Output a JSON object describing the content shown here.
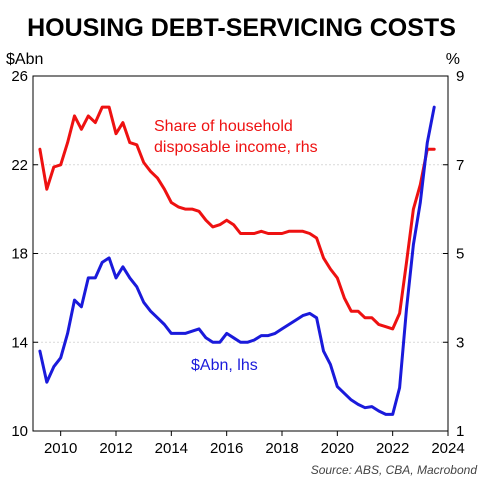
{
  "chart_data": {
    "type": "line",
    "title": "HOUSING DEBT-SERVICING COSTS",
    "y_left_unit": "$Abn",
    "y_right_unit": "%",
    "source": "Source: ABS, CBA, Macrobond",
    "xlim": [
      2009.0,
      2024.0
    ],
    "x_ticks": [
      2010,
      2012,
      2014,
      2016,
      2018,
      2020,
      2022,
      2024
    ],
    "y_left": {
      "lim": [
        10,
        26
      ],
      "ticks": [
        10,
        14,
        18,
        22,
        26
      ]
    },
    "y_right": {
      "lim": [
        1,
        9
      ],
      "ticks": [
        1,
        3,
        5,
        7,
        9
      ]
    },
    "grid": true,
    "series": [
      {
        "name": "Share of household disposable income, rhs",
        "axis": "right",
        "color": "#ee1111",
        "x": [
          2009.25,
          2009.5,
          2009.75,
          2010.0,
          2010.25,
          2010.5,
          2010.75,
          2011.0,
          2011.25,
          2011.5,
          2011.75,
          2012.0,
          2012.25,
          2012.5,
          2012.75,
          2013.0,
          2013.25,
          2013.5,
          2013.75,
          2014.0,
          2014.25,
          2014.5,
          2014.75,
          2015.0,
          2015.25,
          2015.5,
          2015.75,
          2016.0,
          2016.25,
          2016.5,
          2016.75,
          2017.0,
          2017.25,
          2017.5,
          2017.75,
          2018.0,
          2018.25,
          2018.5,
          2018.75,
          2019.0,
          2019.25,
          2019.5,
          2019.75,
          2020.0,
          2020.25,
          2020.5,
          2020.75,
          2021.0,
          2021.25,
          2021.5,
          2021.75,
          2022.0,
          2022.25,
          2022.5,
          2022.75,
          2023.0,
          2023.25,
          2023.5
        ],
        "values": [
          7.35,
          6.45,
          6.95,
          7.0,
          7.5,
          8.1,
          7.8,
          8.1,
          7.95,
          8.3,
          8.3,
          7.7,
          7.95,
          7.5,
          7.45,
          7.05,
          6.85,
          6.7,
          6.45,
          6.15,
          6.05,
          6.0,
          6.0,
          5.95,
          5.75,
          5.6,
          5.65,
          5.75,
          5.65,
          5.45,
          5.45,
          5.45,
          5.5,
          5.45,
          5.45,
          5.45,
          5.5,
          5.5,
          5.5,
          5.45,
          5.35,
          4.9,
          4.65,
          4.45,
          4.0,
          3.7,
          3.7,
          3.55,
          3.55,
          3.4,
          3.35,
          3.3,
          3.65,
          4.8,
          6.0,
          6.55,
          7.35,
          7.35
        ]
      },
      {
        "name": "$Abn, lhs",
        "axis": "left",
        "color": "#1a1adb",
        "x": [
          2009.25,
          2009.5,
          2009.75,
          2010.0,
          2010.25,
          2010.5,
          2010.75,
          2011.0,
          2011.25,
          2011.5,
          2011.75,
          2012.0,
          2012.25,
          2012.5,
          2012.75,
          2013.0,
          2013.25,
          2013.5,
          2013.75,
          2014.0,
          2014.25,
          2014.5,
          2014.75,
          2015.0,
          2015.25,
          2015.5,
          2015.75,
          2016.0,
          2016.25,
          2016.5,
          2016.75,
          2017.0,
          2017.25,
          2017.5,
          2017.75,
          2018.0,
          2018.25,
          2018.5,
          2018.75,
          2019.0,
          2019.25,
          2019.5,
          2019.75,
          2020.0,
          2020.25,
          2020.5,
          2020.75,
          2021.0,
          2021.25,
          2021.5,
          2021.75,
          2022.0,
          2022.25,
          2022.5,
          2022.75,
          2023.0,
          2023.25,
          2023.5
        ],
        "values": [
          13.6,
          12.2,
          12.9,
          13.3,
          14.4,
          15.9,
          15.6,
          16.9,
          16.9,
          17.6,
          17.8,
          16.9,
          17.4,
          16.9,
          16.5,
          15.8,
          15.4,
          15.1,
          14.8,
          14.4,
          14.4,
          14.4,
          14.5,
          14.6,
          14.2,
          14.0,
          14.0,
          14.4,
          14.2,
          14.0,
          14.0,
          14.1,
          14.3,
          14.3,
          14.4,
          14.6,
          14.8,
          15.0,
          15.2,
          15.3,
          15.1,
          13.6,
          13.0,
          12.0,
          11.7,
          11.4,
          11.2,
          11.05,
          11.1,
          10.9,
          10.75,
          10.75,
          11.95,
          15.5,
          18.4,
          20.3,
          23.0,
          24.6
        ]
      }
    ],
    "annotations": [
      {
        "text": "Share of household",
        "series": "Share of household disposable income, rhs"
      },
      {
        "text": "disposable income, rhs",
        "series": "Share of household disposable income, rhs"
      },
      {
        "text": "$Abn, lhs",
        "series": "$Abn, lhs"
      }
    ]
  }
}
